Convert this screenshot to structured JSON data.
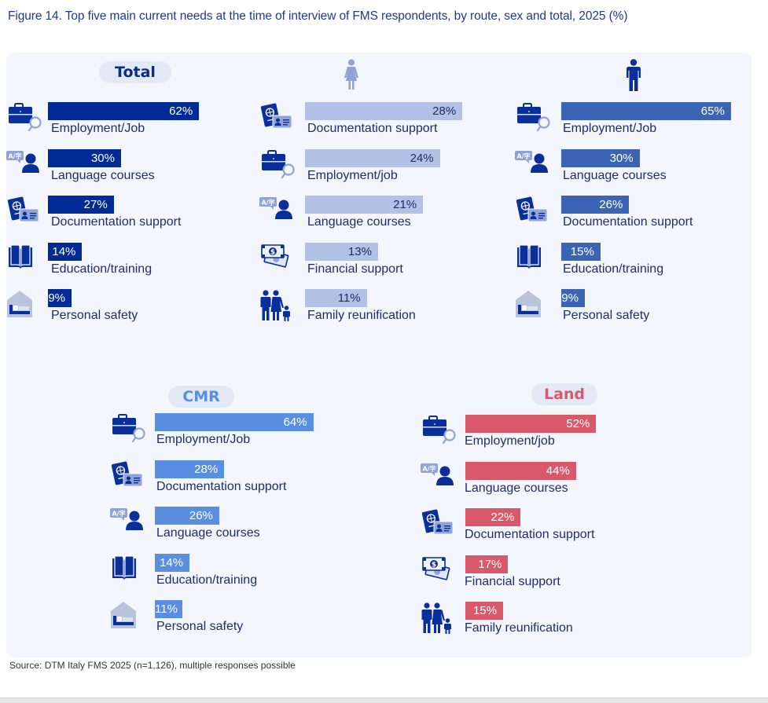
{
  "figure": {
    "title": "Figure 14. Top five main current needs at the time of interview of FMS respondents, by route, sex and total, 2025 (%)",
    "source": "Source: DTM Italy FMS 2025 (n=1,126), multiple responses possible"
  },
  "colors": {
    "total": "#002b96",
    "women": "#b3c1e6",
    "men": "#3c64b4",
    "cmr": "#5a8ee0",
    "land": "#d9596b",
    "icon": "#0a2f9a",
    "icon_light": "#8fa3d6"
  },
  "chart_data": [
    {
      "type": "bar",
      "orientation": "horizontal",
      "title": "Total",
      "unit": "%",
      "xlim": [
        0,
        100
      ],
      "categories": [
        "Employment/Job",
        "Language courses",
        "Documentation support",
        "Education/training",
        "Personal safety"
      ],
      "icons": [
        "briefcase-search-icon",
        "language-person-icon",
        "passport-id-icon",
        "open-book-icon",
        "house-bed-icon"
      ],
      "values": [
        62,
        30,
        27,
        14,
        9
      ],
      "data_labels": [
        "62%",
        "30%",
        "27%",
        "14%",
        "9%"
      ]
    },
    {
      "type": "bar",
      "orientation": "horizontal",
      "title": "Women",
      "header_icon": "woman-icon",
      "unit": "%",
      "xlim": [
        0,
        100
      ],
      "categories": [
        "Documentation support",
        "Employment/job",
        "Language courses",
        "Financial support",
        "Family reunification"
      ],
      "icons": [
        "passport-id-icon",
        "briefcase-search-icon",
        "language-person-icon",
        "banknotes-icon",
        "family-icon"
      ],
      "values": [
        28,
        24,
        21,
        13,
        11
      ],
      "data_labels": [
        "28%",
        "24%",
        "21%",
        "13%",
        "11%"
      ]
    },
    {
      "type": "bar",
      "orientation": "horizontal",
      "title": "Men",
      "header_icon": "man-icon",
      "unit": "%",
      "xlim": [
        0,
        100
      ],
      "categories": [
        "Employment/Job",
        "Language courses",
        "Documentation support",
        "Education/training",
        "Personal safety"
      ],
      "icons": [
        "briefcase-search-icon",
        "language-person-icon",
        "passport-id-icon",
        "open-book-icon",
        "house-bed-icon"
      ],
      "values": [
        65,
        30,
        26,
        15,
        9
      ],
      "data_labels": [
        "65%",
        "30%",
        "26%",
        "15%",
        "9%"
      ]
    },
    {
      "type": "bar",
      "orientation": "horizontal",
      "title": "CMR",
      "unit": "%",
      "xlim": [
        0,
        100
      ],
      "categories": [
        "Employment/Job",
        "Documentation support",
        "Language courses",
        "Education/training",
        "Personal safety"
      ],
      "icons": [
        "briefcase-search-icon",
        "passport-id-icon",
        "language-person-icon",
        "open-book-icon",
        "house-bed-icon"
      ],
      "values": [
        64,
        28,
        26,
        14,
        11
      ],
      "data_labels": [
        "64%",
        "28%",
        "26%",
        "14%",
        "11%"
      ]
    },
    {
      "type": "bar",
      "orientation": "horizontal",
      "title": "Land",
      "unit": "%",
      "xlim": [
        0,
        100
      ],
      "categories": [
        "Employment/job",
        "Language courses",
        "Documentation support",
        "Financial support",
        "Family reunification"
      ],
      "icons": [
        "briefcase-search-icon",
        "language-person-icon",
        "passport-id-icon",
        "banknotes-icon",
        "family-icon"
      ],
      "values": [
        52,
        44,
        22,
        17,
        15
      ],
      "data_labels": [
        "52%",
        "44%",
        "22%",
        "17%",
        "15%"
      ]
    }
  ]
}
